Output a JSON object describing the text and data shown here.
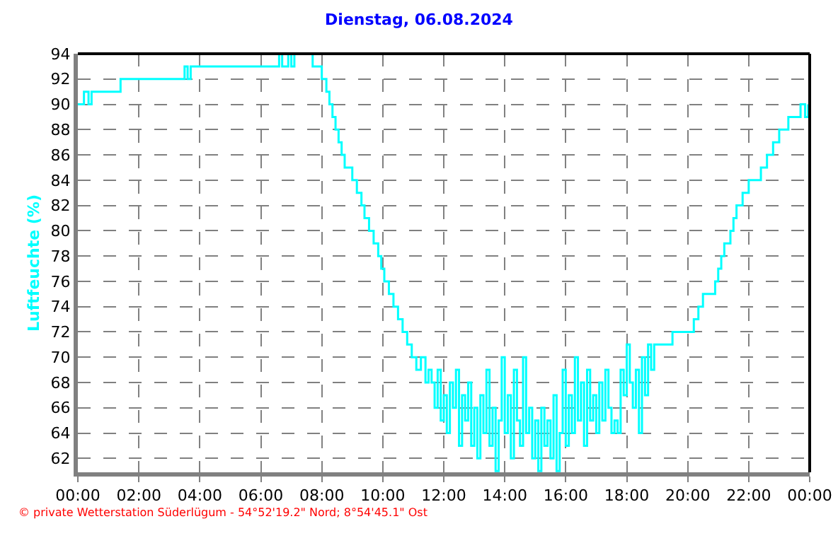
{
  "chart_data": {
    "type": "step",
    "title": "Dienstag, 06.08.2024",
    "ylabel": "Luftfeuchte (%)",
    "annotations": [
      "© private Wetterstation Süderlügum - 54°52'19.2\" Nord; 8°54'45.1\" Ost"
    ],
    "series": [
      {
        "color": "#00ffff",
        "x": [
          0,
          0.2,
          0.35,
          0.45,
          1.4,
          3.5,
          3.6,
          3.7,
          6.6,
          6.7,
          6.9,
          7.0,
          7.1,
          7.7,
          8.0,
          8.15,
          8.25,
          8.35,
          8.45,
          8.55,
          8.65,
          8.75,
          9.0,
          9.15,
          9.3,
          9.4,
          9.55,
          9.7,
          9.85,
          9.95,
          10.05,
          10.2,
          10.35,
          10.5,
          10.65,
          10.8,
          10.95,
          11.1,
          11.25,
          11.4,
          11.5,
          11.6,
          11.7,
          11.8,
          11.9,
          12.0,
          12.1,
          12.2,
          12.3,
          12.4,
          12.5,
          12.6,
          12.7,
          12.8,
          12.9,
          13.0,
          13.1,
          13.2,
          13.3,
          13.4,
          13.5,
          13.6,
          13.7,
          13.8,
          13.9,
          14.0,
          14.1,
          14.2,
          14.3,
          14.4,
          14.5,
          14.6,
          14.7,
          14.8,
          14.9,
          15.0,
          15.1,
          15.2,
          15.3,
          15.4,
          15.5,
          15.6,
          15.7,
          15.8,
          15.9,
          16.0,
          16.1,
          16.2,
          16.3,
          16.4,
          16.5,
          16.6,
          16.7,
          16.8,
          16.9,
          17.0,
          17.1,
          17.2,
          17.3,
          17.4,
          17.5,
          17.6,
          17.7,
          17.8,
          17.9,
          18.0,
          18.1,
          18.2,
          18.3,
          18.4,
          18.5,
          18.6,
          18.7,
          18.8,
          18.9,
          19.2,
          19.5,
          20.0,
          20.2,
          20.35,
          20.5,
          20.9,
          21.0,
          21.1,
          21.2,
          21.4,
          21.5,
          21.6,
          21.8,
          22.0,
          22.4,
          22.6,
          22.8,
          23.0,
          23.3,
          23.7,
          23.85,
          23.95
        ],
        "values": [
          90,
          91,
          90,
          91,
          92,
          93,
          92,
          93,
          94,
          93,
          94,
          93,
          94,
          93,
          92,
          91,
          90,
          89,
          88,
          87,
          86,
          85,
          84,
          83,
          82,
          81,
          80,
          79,
          78,
          77,
          76,
          75,
          74,
          73,
          72,
          71,
          70,
          69,
          70,
          68,
          69,
          68,
          66,
          69,
          65,
          67,
          64,
          68,
          66,
          69,
          63,
          67,
          65,
          68,
          63,
          66,
          62,
          67,
          64,
          69,
          63,
          66,
          61,
          65,
          70,
          64,
          67,
          62,
          69,
          65,
          63,
          70,
          64,
          66,
          62,
          65,
          61,
          66,
          63,
          65,
          62,
          67,
          61,
          64,
          69,
          63,
          67,
          64,
          70,
          65,
          68,
          63,
          69,
          65,
          67,
          64,
          68,
          65,
          69,
          66,
          64,
          65,
          64,
          69,
          67,
          71,
          68,
          66,
          69,
          64,
          70,
          67,
          71,
          69,
          71,
          71,
          72,
          72,
          73,
          74,
          75,
          76,
          77,
          78,
          79,
          80,
          81,
          82,
          83,
          84,
          85,
          86,
          87,
          88,
          89,
          90,
          89,
          90
        ]
      }
    ],
    "xlim": [
      0,
      24
    ],
    "xticks": [
      {
        "value": 0,
        "label": "00:00"
      },
      {
        "value": 2,
        "label": "02:00"
      },
      {
        "value": 4,
        "label": "04:00"
      },
      {
        "value": 6,
        "label": "06:00"
      },
      {
        "value": 8,
        "label": "08:00"
      },
      {
        "value": 10,
        "label": "10:00"
      },
      {
        "value": 12,
        "label": "12:00"
      },
      {
        "value": 14,
        "label": "14:00"
      },
      {
        "value": 16,
        "label": "16:00"
      },
      {
        "value": 18,
        "label": "18:00"
      },
      {
        "value": 20,
        "label": "20:00"
      },
      {
        "value": 22,
        "label": "22:00"
      },
      {
        "value": 24,
        "label": "00:00"
      }
    ],
    "ylim": [
      60.9,
      94
    ],
    "yticks": [
      62,
      64,
      66,
      68,
      70,
      72,
      74,
      76,
      78,
      80,
      82,
      84,
      86,
      88,
      90,
      92,
      94
    ],
    "grid": true,
    "legend": false,
    "line_style": "solid",
    "marker": "none"
  }
}
